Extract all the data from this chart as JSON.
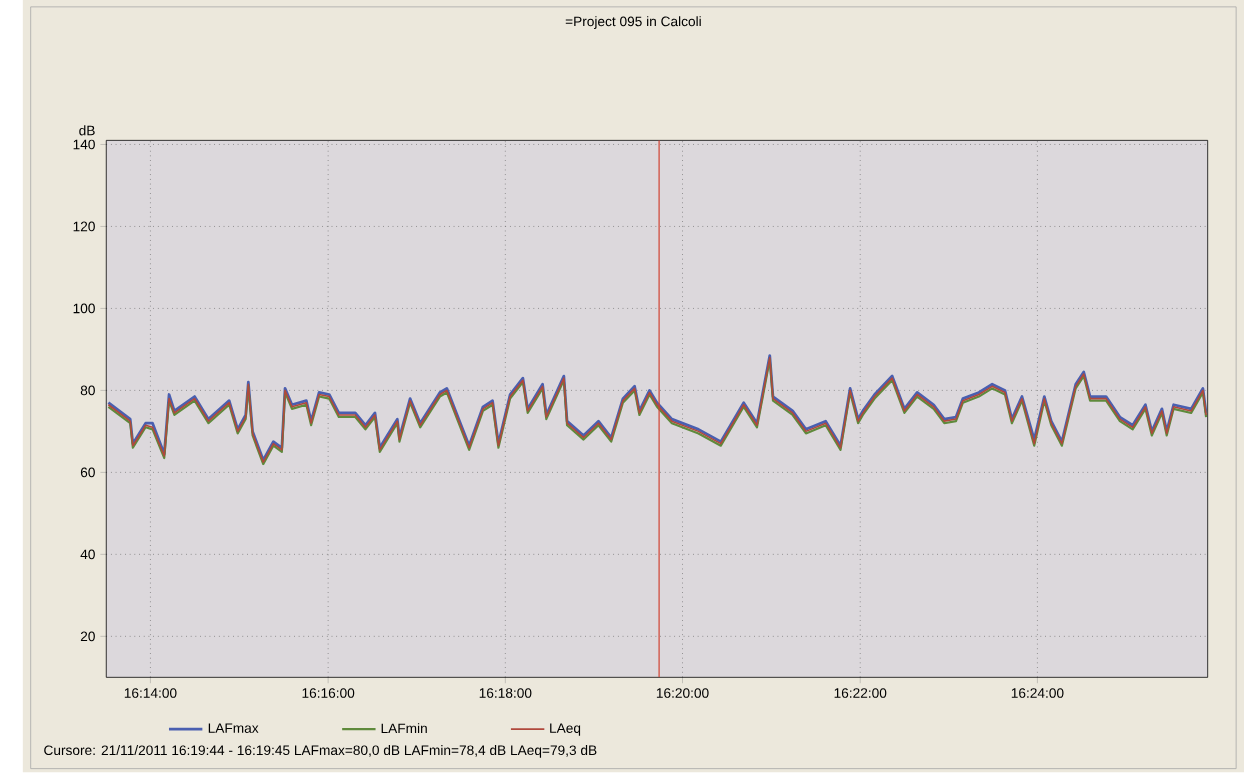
{
  "chart_data": {
    "type": "line",
    "title": "=Project 095 in Calcoli",
    "ylabel": "dB",
    "x": [
      16.2254,
      16.2295,
      16.23,
      16.2324,
      16.2337,
      16.2359,
      16.2368,
      16.2378,
      16.2416,
      16.2442,
      16.2481,
      16.2497,
      16.2512,
      16.2517,
      16.2525,
      16.2545,
      16.2564,
      16.258,
      16.2586,
      16.2599,
      16.2626,
      16.2635,
      16.265,
      16.2669,
      16.2687,
      16.2718,
      16.2737,
      16.2755,
      16.2764,
      16.2797,
      16.2801,
      16.2821,
      16.284,
      16.2877,
      16.289,
      16.2908,
      16.2932,
      16.2958,
      16.2976,
      16.2987,
      16.3009,
      16.3033,
      16.3042,
      16.307,
      16.3077,
      16.311,
      16.3116,
      16.3147,
      16.3175,
      16.3199,
      16.3221,
      16.3243,
      16.3252,
      16.3271,
      16.3285,
      16.3313,
      16.3363,
      16.3405,
      16.3448,
      16.3473,
      16.3497,
      16.3503,
      16.354,
      16.3565,
      16.3602,
      16.363,
      16.3648,
      16.3663,
      16.3672,
      16.3694,
      16.3727,
      16.375,
      16.3774,
      16.3805,
      16.3825,
      16.3847,
      16.386,
      16.389,
      16.3915,
      16.3939,
      16.3952,
      16.3971,
      16.3994,
      16.4013,
      16.4026,
      16.4046,
      16.4072,
      16.4087,
      16.4099,
      16.4129,
      16.4155,
      16.4179,
      16.4203,
      16.4215,
      16.4234,
      16.4243,
      16.4256,
      16.4289,
      16.4311,
      16.4317
    ],
    "series": [
      {
        "name": "LAFmax",
        "color": "#4a5fb0",
        "values": [
          77,
          73,
          67,
          72,
          72,
          64.5,
          79,
          75,
          78.5,
          73,
          77.5,
          70.5,
          74,
          82,
          70,
          63,
          67.5,
          66,
          80.5,
          76.5,
          77.5,
          72.5,
          79.5,
          79,
          74.5,
          74.5,
          71.5,
          74.5,
          66,
          73,
          68.5,
          78,
          72,
          79.5,
          80.5,
          74.5,
          66.5,
          76,
          77.5,
          67,
          79,
          83,
          75.5,
          81.5,
          74,
          83.5,
          72.5,
          69,
          72.5,
          68.5,
          78,
          81,
          75,
          80,
          77,
          73,
          70.5,
          67.5,
          77,
          72,
          88.5,
          78.5,
          75,
          70.5,
          72.5,
          66.5,
          80.5,
          73,
          75,
          79,
          83.5,
          75.5,
          79.5,
          76.5,
          73,
          73.5,
          78,
          79.5,
          81.5,
          80,
          73,
          78.5,
          68,
          78.5,
          72.5,
          67.5,
          81.5,
          84.5,
          78.5,
          78.5,
          73.5,
          71.5,
          76.5,
          70,
          75.5,
          70,
          76.5,
          75.5,
          80.5,
          74.5
        ]
      },
      {
        "name": "LAFmin",
        "color": "#5f8a3c",
        "values": [
          76,
          72,
          66,
          71,
          70.5,
          63.5,
          77.5,
          74,
          77.5,
          72,
          76.5,
          69.5,
          73,
          81,
          69,
          62,
          66.5,
          65,
          79.5,
          75.5,
          76.5,
          71.5,
          78.5,
          78,
          73.5,
          73.5,
          70.5,
          73.5,
          65,
          72,
          67.5,
          77,
          71,
          78.5,
          79.5,
          73.5,
          65.5,
          75,
          76.5,
          66,
          78,
          82,
          74.5,
          80.5,
          73,
          82.5,
          71.5,
          68,
          71.5,
          67.5,
          77,
          80,
          74,
          79,
          76,
          72,
          69.5,
          66.5,
          76,
          71,
          87.5,
          77.5,
          74,
          69.5,
          71.5,
          65.5,
          79.5,
          72,
          74,
          78,
          82.5,
          74.5,
          78.5,
          75.5,
          72,
          72.5,
          77,
          78.5,
          80.5,
          79,
          72,
          77.5,
          66.5,
          77.5,
          71.5,
          66.5,
          80.5,
          83.5,
          77.5,
          77.5,
          72.5,
          70.5,
          75.5,
          69,
          74.5,
          69,
          75.5,
          74.5,
          79.5,
          73.5
        ]
      },
      {
        "name": "LAeq",
        "color": "#b0483c",
        "values": [
          76.5,
          72.5,
          66.5,
          71.5,
          71,
          64,
          78,
          74.5,
          78,
          72.5,
          77,
          70,
          73.5,
          81.5,
          69.5,
          62.5,
          67,
          65.5,
          80,
          76,
          77,
          72,
          79,
          78.5,
          74,
          74,
          71,
          74,
          65.5,
          72.5,
          68,
          77.5,
          71.5,
          79,
          80,
          74,
          66,
          75.5,
          77,
          66.5,
          78.5,
          82.5,
          75,
          81,
          73.5,
          83,
          72,
          68.5,
          72,
          68,
          77.5,
          80.5,
          74.5,
          79.5,
          76.5,
          72.5,
          70,
          67,
          76.5,
          71.5,
          88,
          78,
          74.5,
          70,
          72,
          66,
          80,
          72.5,
          74.5,
          78.5,
          83,
          75,
          79,
          76,
          72.5,
          73,
          77.5,
          79,
          81,
          79.5,
          72.5,
          78,
          67,
          78,
          72,
          67,
          81,
          84,
          78,
          78,
          73,
          71,
          76,
          69.5,
          75,
          69.5,
          76,
          75,
          80,
          74
        ]
      }
    ],
    "xlim": [
      16.225,
      16.432
    ],
    "xticks": [
      {
        "value": 16.2333,
        "label": "16:14:00"
      },
      {
        "value": 16.2667,
        "label": "16:16:00"
      },
      {
        "value": 16.3,
        "label": "16:18:00"
      },
      {
        "value": 16.3333,
        "label": "16:20:00"
      },
      {
        "value": 16.3667,
        "label": "16:22:00"
      },
      {
        "value": 16.4,
        "label": "16:24:00"
      }
    ],
    "ylim": [
      10,
      141
    ],
    "yticks": [
      20,
      40,
      60,
      80,
      100,
      120,
      140
    ],
    "ref_lines": [
      {
        "axis": "x",
        "value": 16.3289,
        "color": "#d04030"
      }
    ],
    "grid": true,
    "legend": "bottom",
    "line_style": "solid",
    "marker": "none",
    "annotations": [
      "Cursore: 21/11/2011 16:19:44 - 16:19:45 LAFmax=80,0 dB LAFmin=78,4 dB LAeq=79,3 dB"
    ]
  }
}
